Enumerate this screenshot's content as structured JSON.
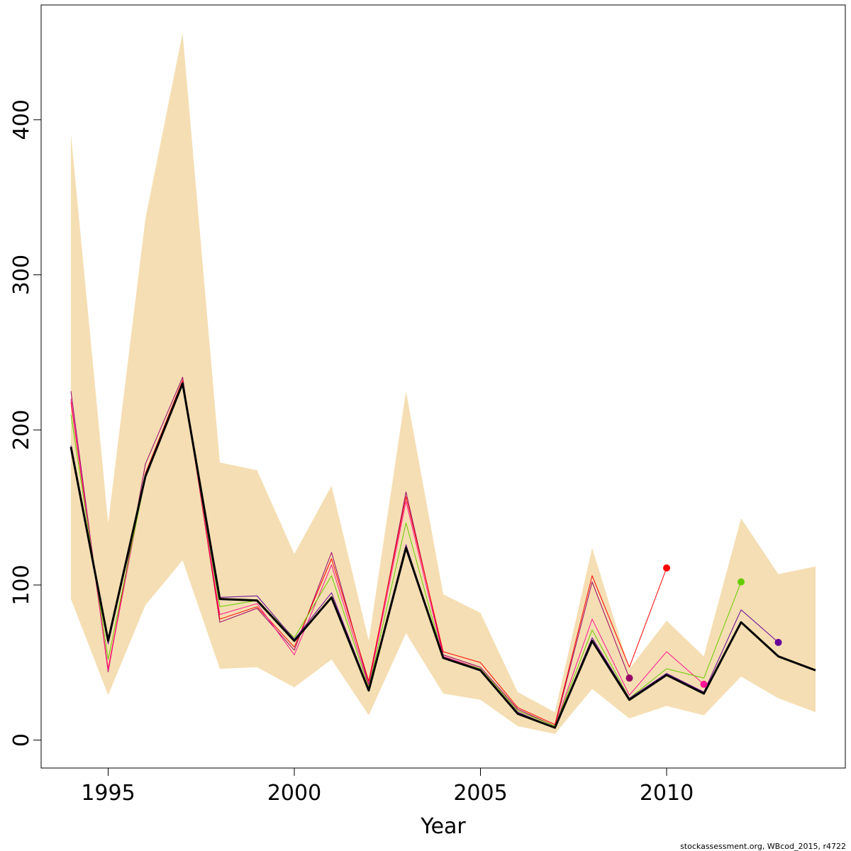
{
  "chart_data": {
    "type": "line",
    "xlabel": "Year",
    "ylabel": "",
    "xlim": [
      1993.2,
      2014.8
    ],
    "ylim": [
      -18,
      474
    ],
    "x_ticks": [
      1995,
      2000,
      2005,
      2010
    ],
    "y_ticks": [
      0,
      100,
      200,
      300,
      400
    ],
    "grid": false,
    "legend": "none",
    "band": {
      "color": "#F5DEB3",
      "x": [
        1994,
        1995,
        1996,
        1997,
        1998,
        1999,
        2000,
        2001,
        2002,
        2003,
        2004,
        2005,
        2006,
        2007,
        2008,
        2009,
        2010,
        2011,
        2012,
        2013,
        2014
      ],
      "upper": [
        391,
        140,
        336,
        456,
        179,
        174,
        120,
        164,
        64,
        225,
        94,
        82,
        31,
        18,
        124,
        46,
        77,
        54,
        143,
        107,
        112
      ],
      "lower": [
        91,
        29,
        87,
        116,
        46,
        47,
        34,
        52,
        16,
        69,
        30,
        26,
        9,
        4,
        33,
        14,
        22,
        16,
        41,
        27,
        18
      ]
    },
    "series": [
      {
        "color": "#000000",
        "x": [
          1994,
          1995,
          1996,
          1997,
          1998,
          1999,
          2000,
          2001,
          2002,
          2003,
          2004,
          2005,
          2006,
          2007,
          2008,
          2009,
          2010,
          2011,
          2012,
          2013,
          2014
        ],
        "values": [
          189,
          64,
          170,
          230,
          91,
          90,
          64,
          92,
          32,
          124,
          53,
          45,
          17,
          8,
          64,
          26,
          42,
          30,
          76,
          54,
          45
        ]
      },
      {
        "color": "#990066",
        "x": [
          1994,
          1995,
          1996,
          1997,
          1998,
          1999,
          2000,
          2001,
          2002,
          2003,
          2004,
          2005,
          2006,
          2007,
          2008,
          2009
        ],
        "values": [
          225,
          44,
          178,
          234,
          76,
          85,
          58,
          121,
          36,
          160,
          55,
          47,
          20,
          9,
          102,
          40
        ]
      },
      {
        "color": "#FF0000",
        "x": [
          1994,
          1995,
          1996,
          1997,
          1998,
          1999,
          2000,
          2001,
          2002,
          2003,
          2004,
          2005,
          2006,
          2007,
          2008,
          2009,
          2010
        ],
        "values": [
          218,
          46,
          172,
          232,
          78,
          86,
          60,
          117,
          38,
          157,
          57,
          50,
          21,
          10,
          106,
          47,
          111
        ]
      },
      {
        "color": "#FF1493",
        "x": [
          1994,
          1995,
          1996,
          1997,
          1998,
          1999,
          2000,
          2001,
          2002,
          2003,
          2004,
          2005,
          2006,
          2007,
          2008,
          2009,
          2010,
          2011
        ],
        "values": [
          220,
          45,
          171,
          231,
          81,
          88,
          55,
          113,
          35,
          154,
          54,
          46,
          19,
          9,
          78,
          29,
          57,
          36
        ]
      },
      {
        "color": "#66CC00",
        "x": [
          1994,
          1995,
          1996,
          1997,
          1998,
          1999,
          2000,
          2001,
          2002,
          2003,
          2004,
          2005,
          2006,
          2007,
          2008,
          2009,
          2010,
          2011,
          2012
        ],
        "values": [
          210,
          52,
          169,
          229,
          86,
          90,
          66,
          106,
          34,
          140,
          53,
          46,
          19,
          9,
          71,
          27,
          46,
          40,
          102
        ]
      },
      {
        "color": "#660099",
        "x": [
          1994,
          1995,
          1996,
          1997,
          1998,
          1999,
          2000,
          2001,
          2002,
          2003,
          2004,
          2005,
          2006,
          2007,
          2008,
          2009,
          2010,
          2011,
          2012,
          2013
        ],
        "values": [
          190,
          62,
          170,
          230,
          92,
          93,
          65,
          95,
          33,
          126,
          53,
          45,
          18,
          8,
          66,
          27,
          43,
          31,
          84,
          63
        ]
      }
    ],
    "points": [
      {
        "x": 2009,
        "y": 40,
        "color": "#990066"
      },
      {
        "x": 2010,
        "y": 111,
        "color": "#FF0000"
      },
      {
        "x": 2011,
        "y": 36,
        "color": "#FF1493"
      },
      {
        "x": 2012,
        "y": 102,
        "color": "#66CC00"
      },
      {
        "x": 2013,
        "y": 63,
        "color": "#660099"
      }
    ]
  },
  "footer": "stockassessment.org, WBcod_2015, r4722"
}
